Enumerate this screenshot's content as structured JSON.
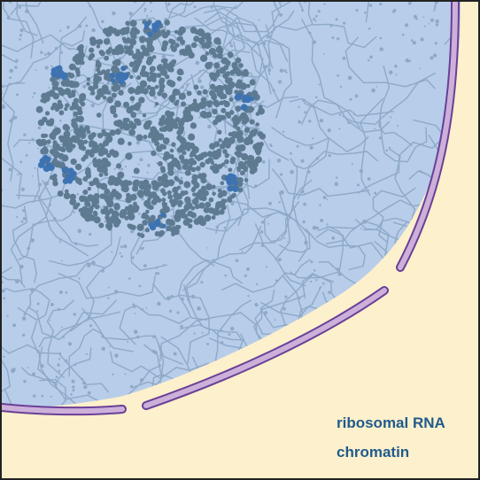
{
  "legend": {
    "items": [
      {
        "label": "ribosomal RNA"
      },
      {
        "label": "chromatin"
      }
    ]
  },
  "colors": {
    "cytoplasm": "#fdf0cc",
    "nucleoplasm": "#b7cdea",
    "chromatin": "#8ea9c7",
    "nucleolus_dense": "#5d7a91",
    "ribosomal_rna": "#3d73b2",
    "envelope_fill": "#cdb0da",
    "envelope_edge": "#6a3f97",
    "legend_text": "#1f5b8c",
    "frame": "#222222"
  }
}
